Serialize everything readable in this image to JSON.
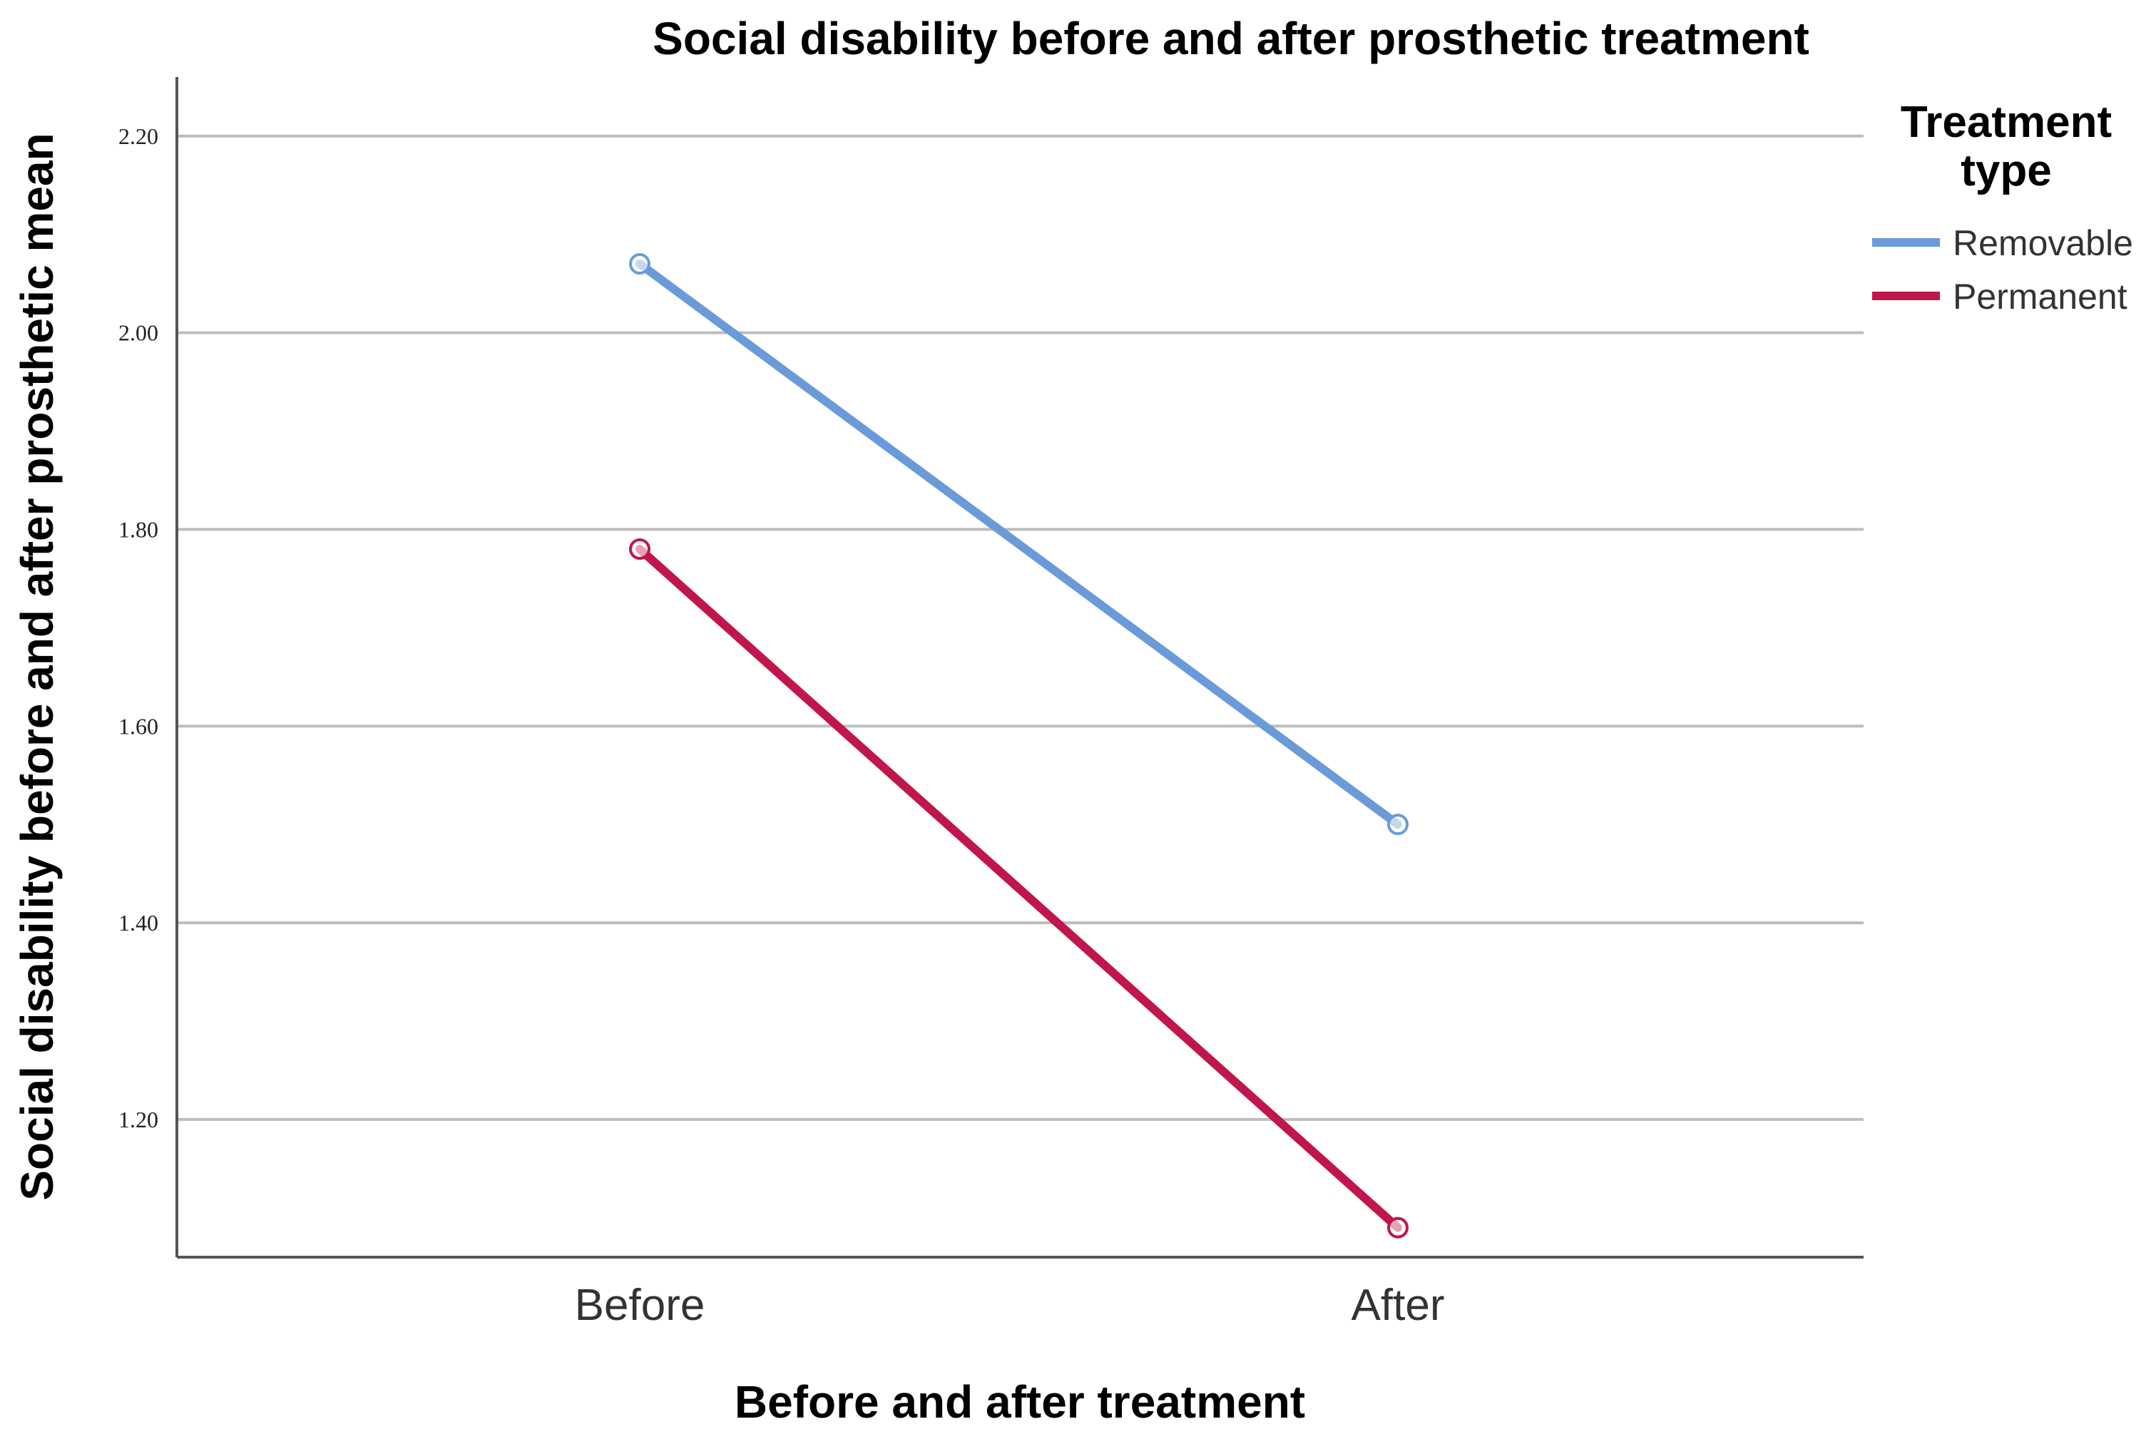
{
  "colors": {
    "removable": "#6a9bd8",
    "permanent": "#c0164a",
    "grid": "#bdbdbd",
    "axis": "#555555"
  },
  "chart_data": {
    "type": "line",
    "title": "Social disability before and after prosthetic treatment",
    "xlabel": "Before and after treatment",
    "ylabel": "Social disability before and after prosthetic mean",
    "categories": [
      "Before",
      "After"
    ],
    "ylim": [
      1.06,
      2.26
    ],
    "yticks": [
      1.2,
      1.4,
      1.6,
      1.8,
      2.0,
      2.2
    ],
    "ytick_labels": [
      "1.20",
      "1.40",
      "1.60",
      "1.80",
      "2.00",
      "2.20"
    ],
    "grid": true,
    "legend": {
      "title_line1": "Treatment",
      "title_line2": "type",
      "position": "right"
    },
    "series": [
      {
        "name": "Removable",
        "values": [
          2.07,
          1.5
        ],
        "color": "#6a9bd8"
      },
      {
        "name": "Permanent",
        "values": [
          1.78,
          1.09
        ],
        "color": "#c0164a"
      }
    ]
  }
}
